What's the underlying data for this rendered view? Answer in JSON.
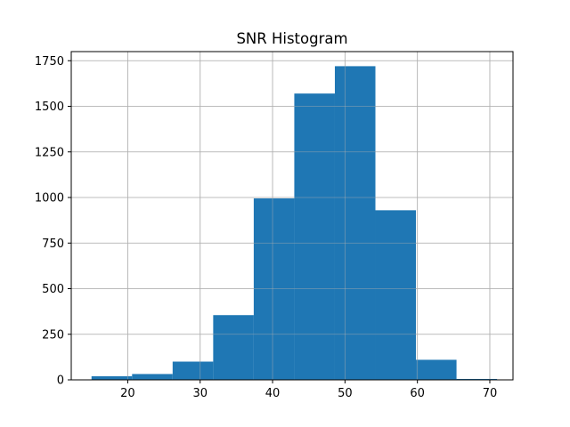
{
  "chart_data": {
    "type": "bar",
    "title": "SNR Histogram",
    "xlabel": "",
    "ylabel": "",
    "xlim": [
      12.2,
      73.2
    ],
    "ylim": [
      0,
      1800
    ],
    "grid": true,
    "bar_color": "#1f77b4",
    "bins": [
      {
        "x0": 15.0,
        "x1": 20.6,
        "count": 20
      },
      {
        "x0": 20.6,
        "x1": 26.2,
        "count": 32
      },
      {
        "x0": 26.2,
        "x1": 31.8,
        "count": 100
      },
      {
        "x0": 31.8,
        "x1": 37.4,
        "count": 355
      },
      {
        "x0": 37.4,
        "x1": 43.0,
        "count": 995
      },
      {
        "x0": 43.0,
        "x1": 48.6,
        "count": 1570
      },
      {
        "x0": 48.6,
        "x1": 54.2,
        "count": 1720
      },
      {
        "x0": 54.2,
        "x1": 59.8,
        "count": 930
      },
      {
        "x0": 59.8,
        "x1": 65.4,
        "count": 110
      },
      {
        "x0": 65.4,
        "x1": 71.0,
        "count": 5
      }
    ],
    "x_ticks": [
      {
        "value": 20,
        "label": "20"
      },
      {
        "value": 30,
        "label": "30"
      },
      {
        "value": 40,
        "label": "40"
      },
      {
        "value": 50,
        "label": "50"
      },
      {
        "value": 60,
        "label": "60"
      },
      {
        "value": 70,
        "label": "70"
      }
    ],
    "y_ticks": [
      {
        "value": 0,
        "label": "0"
      },
      {
        "value": 250,
        "label": "250"
      },
      {
        "value": 500,
        "label": "500"
      },
      {
        "value": 750,
        "label": "750"
      },
      {
        "value": 1000,
        "label": "1000"
      },
      {
        "value": 1250,
        "label": "1250"
      },
      {
        "value": 1500,
        "label": "1500"
      },
      {
        "value": 1750,
        "label": "1750"
      }
    ]
  }
}
